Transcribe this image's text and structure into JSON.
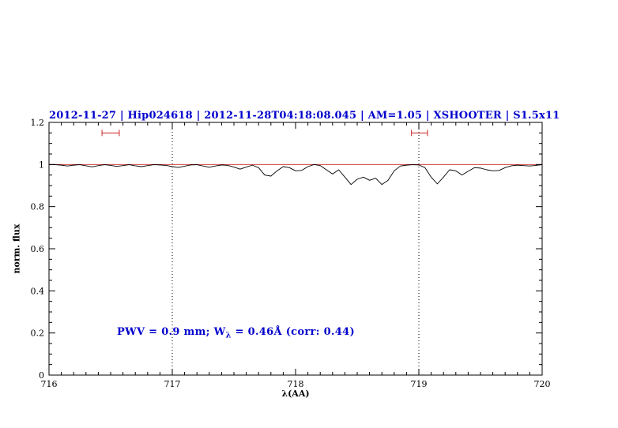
{
  "title": "2012-11-27 | Hip024618 | 2012-11-28T04:18:08.045 | AM=1.05 | XSHOOTER | S1.5x11",
  "annotation": {
    "prefix": "PWV = 0.9 mm; W",
    "sub": "λ",
    "suffix": " = 0.46Å (corr: 0.44)"
  },
  "colors": {
    "title": "#0000cd",
    "annotation": "#0000cd",
    "spectrum": "#000000",
    "continuum": "#cc2222",
    "marker": "#cc2222",
    "axis": "#000000"
  },
  "chart_data": {
    "type": "line",
    "title": "2012-11-27 | Hip024618 | 2012-11-28T04:18:08.045 | AM=1.05 | XSHOOTER | S1.5x11",
    "xlabel": "λ(AA)",
    "ylabel": "norm. flux",
    "xlim": [
      716,
      720
    ],
    "ylim": [
      0,
      1.2
    ],
    "x_ticks": [
      716,
      717,
      718,
      719,
      720
    ],
    "x_tick_labels": [
      "716",
      "717",
      "718",
      "719",
      "720"
    ],
    "y_ticks": [
      0,
      0.2,
      0.4,
      0.6,
      0.8,
      1,
      1.2
    ],
    "y_tick_labels": [
      "0",
      "0.2",
      "0.4",
      "0.6",
      "0.8",
      "1",
      "1.2"
    ],
    "grid": false,
    "vlines_dotted": [
      717,
      719
    ],
    "continuum_y": 1.0,
    "range_markers": [
      {
        "y": 1.15,
        "x1": 716.43,
        "x2": 716.57
      },
      {
        "y": 1.15,
        "x1": 718.94,
        "x2": 719.07
      }
    ],
    "series": [
      {
        "name": "spectrum",
        "x": [
          716.0,
          716.05,
          716.1,
          716.15,
          716.2,
          716.25,
          716.3,
          716.35,
          716.4,
          716.45,
          716.5,
          716.55,
          716.6,
          716.65,
          716.7,
          716.75,
          716.8,
          716.85,
          716.9,
          716.95,
          717.0,
          717.05,
          717.1,
          717.15,
          717.2,
          717.25,
          717.3,
          717.35,
          717.4,
          717.45,
          717.5,
          717.55,
          717.6,
          717.65,
          717.7,
          717.75,
          717.8,
          717.85,
          717.9,
          717.95,
          718.0,
          718.05,
          718.1,
          718.15,
          718.2,
          718.25,
          718.3,
          718.35,
          718.4,
          718.45,
          718.5,
          718.55,
          718.6,
          718.65,
          718.7,
          718.75,
          718.8,
          718.85,
          718.9,
          718.95,
          719.0,
          719.05,
          719.1,
          719.15,
          719.2,
          719.25,
          719.3,
          719.35,
          719.4,
          719.45,
          719.5,
          719.55,
          719.6,
          719.65,
          719.7,
          719.75,
          719.8,
          719.85,
          719.9,
          719.95,
          720.0
        ],
        "y": [
          1.0,
          0.999,
          0.997,
          0.993,
          0.997,
          0.999,
          0.994,
          0.989,
          0.995,
          0.999,
          0.996,
          0.991,
          0.995,
          0.999,
          0.994,
          0.99,
          0.995,
          0.999,
          0.998,
          0.996,
          0.99,
          0.986,
          0.992,
          0.998,
          0.999,
          0.993,
          0.987,
          0.993,
          0.998,
          0.996,
          0.988,
          0.978,
          0.988,
          0.997,
          0.985,
          0.95,
          0.945,
          0.97,
          0.99,
          0.985,
          0.97,
          0.972,
          0.99,
          1.0,
          0.995,
          0.975,
          0.955,
          0.975,
          0.94,
          0.905,
          0.93,
          0.94,
          0.925,
          0.935,
          0.905,
          0.925,
          0.97,
          0.993,
          0.997,
          0.999,
          0.998,
          0.985,
          0.94,
          0.908,
          0.94,
          0.975,
          0.97,
          0.95,
          0.968,
          0.985,
          0.983,
          0.975,
          0.97,
          0.972,
          0.985,
          0.994,
          0.997,
          0.995,
          0.993,
          0.996,
          0.999
        ]
      }
    ],
    "legend": false
  }
}
